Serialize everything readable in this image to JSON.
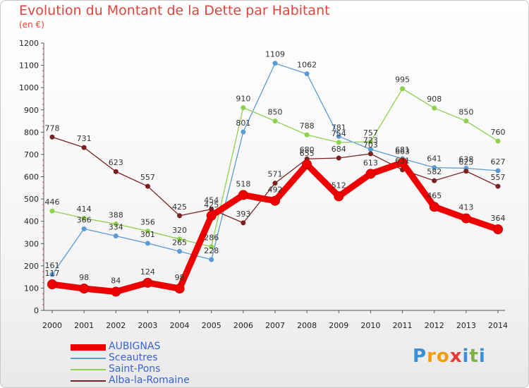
{
  "chart_data": {
    "type": "line",
    "title": "Evolution du Montant de la Dette par Habitant",
    "subtitle": "(en €)",
    "x": [
      "2000",
      "2001",
      "2002",
      "2003",
      "2004",
      "2005",
      "2006",
      "2007",
      "2008",
      "2009",
      "2010",
      "2011",
      "2012",
      "2013",
      "2014"
    ],
    "ylim": [
      0,
      1200
    ],
    "yticks": [
      0,
      100,
      200,
      300,
      400,
      500,
      600,
      700,
      800,
      900,
      1000,
      1100,
      1200
    ],
    "grid": false,
    "legend_position": "bottom-left",
    "series": [
      {
        "name": "AUBIGNAS",
        "color": "#ee0000",
        "emphasis": true,
        "values": [
          117,
          98,
          84,
          124,
          98,
          425,
          518,
          492,
          655,
          512,
          613,
          663,
          465,
          413,
          364
        ]
      },
      {
        "name": "Sceautres",
        "color": "#5b9bd5",
        "values": [
          161,
          366,
          334,
          301,
          265,
          228,
          801,
          1109,
          1062,
          781,
          723,
          681,
          641,
          638,
          627
        ]
      },
      {
        "name": "Saint-Pons",
        "color": "#8fd14f",
        "values": [
          446,
          414,
          388,
          356,
          320,
          286,
          910,
          850,
          788,
          754,
          757,
          995,
          908,
          850,
          760
        ]
      },
      {
        "name": "Alba-la-Romaine",
        "color": "#7a2020",
        "values": [
          778,
          731,
          623,
          557,
          425,
          454,
          393,
          571,
          680,
          684,
          703,
          631,
          582,
          625,
          557
        ]
      }
    ]
  },
  "logo": {
    "text": "Proxiti",
    "letters": [
      "P",
      "r",
      "o",
      "x",
      "i",
      "t",
      "i"
    ],
    "colors": [
      "#3a8fd8",
      "#f39c12",
      "#f39c12",
      "#e53935",
      "#3a8fd8",
      "#7cb342",
      "#3a8fd8"
    ]
  }
}
